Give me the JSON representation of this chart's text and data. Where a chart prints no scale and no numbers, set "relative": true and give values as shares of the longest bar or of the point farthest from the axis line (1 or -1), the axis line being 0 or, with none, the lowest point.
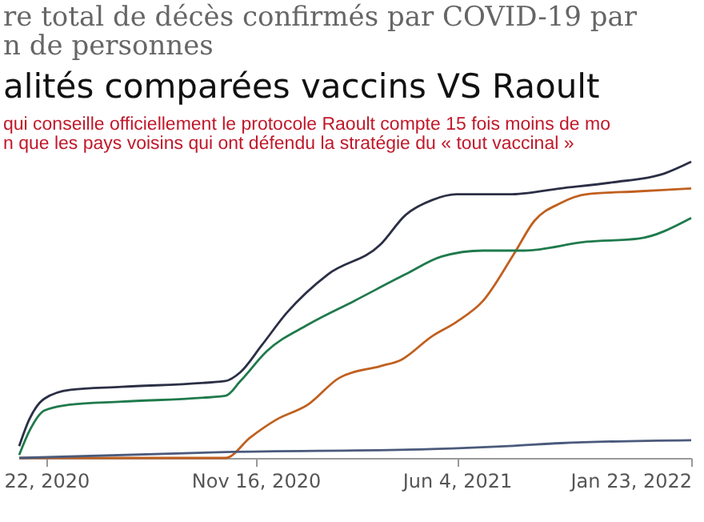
{
  "chart_data": {
    "type": "line",
    "title": "re total de décès confirmés par COVID-19 par\nn de personnes",
    "subtitle": "alités comparées vaccins VS Raoult",
    "annotations": [
      "qui conseille officiellement le protocole Raoult compte 15 fois moins de mo",
      "n que les pays voisins qui ont défendu la stratégie du «  tout vaccinal »"
    ],
    "relative": true,
    "xlim": [
      "2020-03-26",
      "2022-01-23"
    ],
    "xticks": [
      {
        "value": "2020-04-22",
        "label": "22, 2020"
      },
      {
        "value": "2020-11-16",
        "label": "Nov 16, 2020"
      },
      {
        "value": "2021-06-04",
        "label": "Jun 4, 2021"
      },
      {
        "value": "2022-01-23",
        "label": "Jan 23, 2022"
      }
    ],
    "series": [
      {
        "color": "#2b2f45",
        "x": [
          "2020-03-26",
          "2020-04-05",
          "2020-04-20",
          "2020-05-16",
          "2020-07-06",
          "2020-10-17",
          "2020-11-01",
          "2020-11-22",
          "2020-12-17",
          "2021-01-27",
          "2021-03-20",
          "2021-04-14",
          "2021-05-10",
          "2021-06-04",
          "2021-07-26",
          "2021-09-15",
          "2021-11-05",
          "2021-12-27",
          "2022-01-23"
        ],
        "values": [
          0.04,
          0.13,
          0.2,
          0.23,
          0.24,
          0.26,
          0.29,
          0.38,
          0.49,
          0.62,
          0.72,
          0.82,
          0.87,
          0.89,
          0.89,
          0.91,
          0.93,
          0.96,
          1.0
        ]
      },
      {
        "color": "#c0601f",
        "x": [
          "2020-03-26",
          "2020-10-17",
          "2020-11-11",
          "2020-12-07",
          "2021-01-07",
          "2021-02-07",
          "2021-03-20",
          "2021-04-09",
          "2021-05-10",
          "2021-06-04",
          "2021-06-30",
          "2021-07-31",
          "2021-08-20",
          "2021-09-15",
          "2021-10-11",
          "2021-12-01",
          "2022-01-23"
        ],
        "values": [
          0,
          0,
          0.07,
          0.13,
          0.18,
          0.27,
          0.31,
          0.33,
          0.41,
          0.46,
          0.53,
          0.69,
          0.8,
          0.86,
          0.89,
          0.9,
          0.91
        ]
      },
      {
        "color": "#1f7a4c",
        "x": [
          "2020-03-26",
          "2020-04-05",
          "2020-04-20",
          "2020-05-16",
          "2020-07-06",
          "2020-10-17",
          "2020-11-01",
          "2020-11-27",
          "2021-01-07",
          "2021-02-22",
          "2021-04-14",
          "2021-05-20",
          "2021-06-30",
          "2021-08-10",
          "2021-10-11",
          "2021-12-01",
          "2022-01-23"
        ],
        "values": [
          0.01,
          0.09,
          0.16,
          0.18,
          0.19,
          0.21,
          0.26,
          0.36,
          0.45,
          0.53,
          0.62,
          0.68,
          0.7,
          0.7,
          0.73,
          0.74,
          0.81
        ]
      },
      {
        "color": "#4a5a7c",
        "x": [
          "2020-03-26",
          "2020-10-17",
          "2021-05-10",
          "2021-07-26",
          "2021-09-15",
          "2022-01-23"
        ],
        "values": [
          0,
          0.02,
          0.03,
          0.04,
          0.05,
          0.06
        ]
      }
    ]
  }
}
